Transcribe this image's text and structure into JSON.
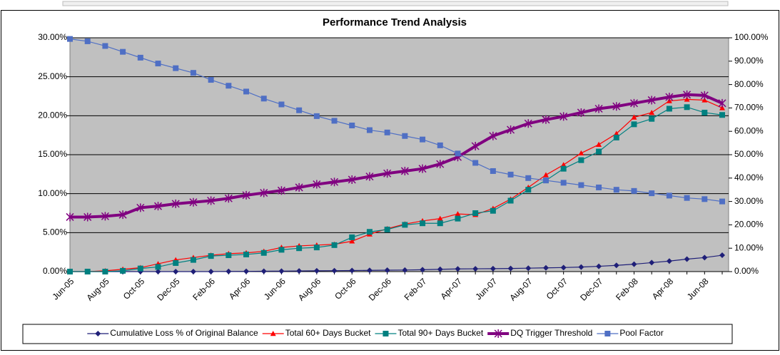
{
  "chart_data": {
    "type": "line",
    "title": "Performance Trend Analysis",
    "categories": [
      "Jun-05",
      null,
      "Aug-05",
      null,
      "Oct-05",
      null,
      "Dec-05",
      null,
      "Feb-06",
      null,
      "Apr-06",
      null,
      "Jun-06",
      null,
      "Aug-06",
      null,
      "Oct-06",
      null,
      "Dec-06",
      null,
      "Feb-07",
      null,
      "Apr-07",
      null,
      "Jun-07",
      null,
      "Aug-07",
      null,
      "Oct-07",
      null,
      "Dec-07",
      null,
      "Feb-08",
      null,
      "Apr-08",
      null,
      "Jun-08",
      null
    ],
    "series": [
      {
        "name": "Cumulative Loss % of Original Balance",
        "color": "#1f1f78",
        "marker": "diamond",
        "values": [
          0,
          0,
          0,
          0,
          0,
          0,
          0,
          0,
          0,
          0.02,
          0.03,
          0.05,
          0.06,
          0.08,
          0.1,
          0.12,
          0.14,
          0.16,
          0.18,
          0.2,
          0.24,
          0.3,
          0.34,
          0.36,
          0.38,
          0.4,
          0.44,
          0.48,
          0.52,
          0.58,
          0.68,
          0.8,
          0.95,
          1.15,
          1.35,
          1.6,
          1.8,
          2.1
        ]
      },
      {
        "name": "Total 60+ Days Bucket",
        "color": "#ff0000",
        "marker": "triangle",
        "values": [
          0,
          0,
          0.1,
          0.3,
          0.5,
          1.0,
          1.5,
          1.8,
          2.1,
          2.3,
          2.4,
          2.6,
          3.1,
          3.3,
          3.4,
          3.5,
          3.9,
          4.8,
          5.5,
          6.1,
          6.5,
          6.8,
          7.4,
          7.3,
          8.1,
          9.3,
          10.8,
          12.4,
          13.7,
          15.2,
          16.3,
          17.7,
          19.8,
          20.4,
          21.9,
          22.1,
          22.0,
          21.0
        ]
      },
      {
        "name": "Total 90+ Days Bucket",
        "color": "#008080",
        "marker": "square",
        "values": [
          0,
          0,
          0,
          0.1,
          0.4,
          0.6,
          1.1,
          1.5,
          2.0,
          2.1,
          2.2,
          2.4,
          2.8,
          3.0,
          3.1,
          3.4,
          4.4,
          5.1,
          5.4,
          6.0,
          6.2,
          6.2,
          6.8,
          7.5,
          7.8,
          9.1,
          10.5,
          11.7,
          13.2,
          14.3,
          15.4,
          17.2,
          18.9,
          19.6,
          20.9,
          21.1,
          20.4,
          20.1
        ]
      },
      {
        "name": "DQ Trigger Threshold",
        "color": "#800080",
        "marker": "star",
        "width": 4,
        "values": [
          7.0,
          7.0,
          7.1,
          7.3,
          8.2,
          8.4,
          8.7,
          8.9,
          9.1,
          9.4,
          9.8,
          10.1,
          10.4,
          10.8,
          11.2,
          11.5,
          11.8,
          12.2,
          12.6,
          12.9,
          13.2,
          13.8,
          14.7,
          16.1,
          17.4,
          18.2,
          19.0,
          19.5,
          19.9,
          20.4,
          20.9,
          21.2,
          21.6,
          22.0,
          22.4,
          22.7,
          22.6,
          21.6
        ]
      },
      {
        "name": "Pool Factor",
        "color": "#4f6fc4",
        "marker": "square",
        "axis": "y2",
        "values": [
          99.5,
          98.5,
          96.5,
          94,
          91.5,
          89,
          87,
          85,
          82,
          79.5,
          77,
          74,
          71.5,
          69,
          66.5,
          64.5,
          62.5,
          60.5,
          59.5,
          58,
          56.5,
          54,
          50.5,
          46.5,
          43,
          41.5,
          40,
          39,
          38,
          37,
          36,
          35,
          34.5,
          33.5,
          32.5,
          31.5,
          31,
          30
        ]
      }
    ],
    "ylim": [
      0,
      30
    ],
    "yticks": [
      {
        "value": 0,
        "label": "0.00%"
      },
      {
        "value": 5,
        "label": "5.00%"
      },
      {
        "value": 10,
        "label": "10.00%"
      },
      {
        "value": 15,
        "label": "15.00%"
      },
      {
        "value": 20,
        "label": "20.00%"
      },
      {
        "value": 25,
        "label": "25.00%"
      },
      {
        "value": 30,
        "label": "30.00%"
      }
    ],
    "y2lim": [
      0,
      100
    ],
    "y2ticks": [
      {
        "value": 0,
        "label": "0.00%"
      },
      {
        "value": 10,
        "label": "10.00%"
      },
      {
        "value": 20,
        "label": "20.00%"
      },
      {
        "value": 30,
        "label": "30.00%"
      },
      {
        "value": 40,
        "label": "40.00%"
      },
      {
        "value": 50,
        "label": "50.00%"
      },
      {
        "value": 60,
        "label": "60.00%"
      },
      {
        "value": 70,
        "label": "70.00%"
      },
      {
        "value": 80,
        "label": "80.00%"
      },
      {
        "value": 90,
        "label": "90.00%"
      },
      {
        "value": 100,
        "label": "100.00%"
      }
    ],
    "grid": true,
    "legend": "bottom",
    "plot_background": "#c0c0c0"
  }
}
